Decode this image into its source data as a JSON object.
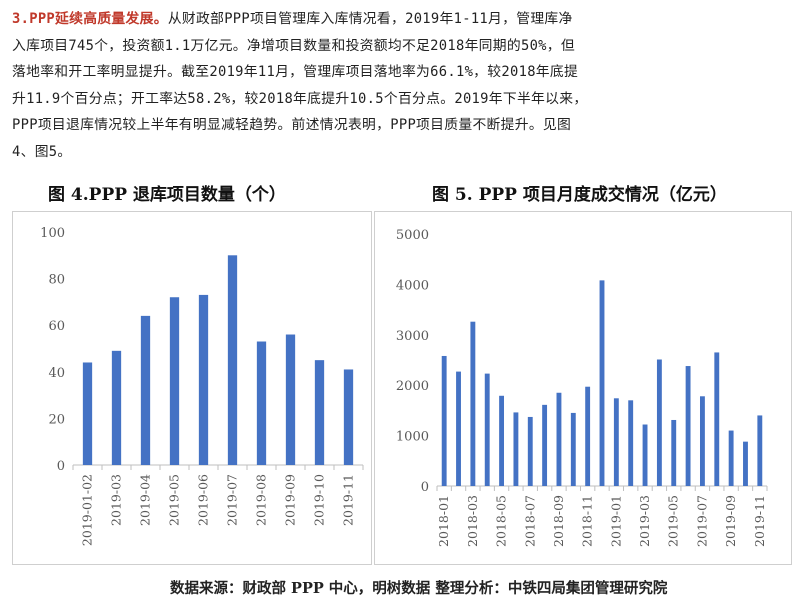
{
  "paragraph": {
    "lead": "3.PPP延续高质量发展。",
    "lines": [
      "从财政部PPP项目管理库入库情况看，2019年1-11月，管理库净",
      "入库项目745个，投资额1.1万亿元。净增项目数量和投资额均不足2018年同期的50%，但",
      "落地率和开工率明显提升。截至2019年11月，管理库项目落地率为66.1%，较2018年底提",
      "升11.9个百分点；开工率达58.2%，较2018年底提升10.5个百分点。2019年下半年以来，",
      "PPP项目退库情况较上半年有明显减轻趋势。前述情况表明，PPP项目质量不断提升。见图",
      "4、图5。"
    ]
  },
  "source_note": "数据来源：财政部 PPP 中心，明树数据    整理分析：中铁四局集团管理研究院",
  "colors": {
    "bar": "#4472c4",
    "axis": "#bfbfbf",
    "tick": "#595959",
    "lead": "#c0392b"
  },
  "chart_data": [
    {
      "type": "bar",
      "title": "图 4.PPP 退库项目数量（个）",
      "categories": [
        "2019-01-02",
        "2019-03",
        "2019-04",
        "2019-05",
        "2019-06",
        "2019-07",
        "2019-08",
        "2019-09",
        "2019-10",
        "2019-11"
      ],
      "values": [
        44,
        49,
        64,
        72,
        73,
        90,
        53,
        56,
        45,
        41
      ],
      "ylim": [
        0,
        100
      ],
      "yticks": [
        0,
        20,
        40,
        60,
        80,
        100
      ],
      "grid": false
    },
    {
      "type": "bar",
      "title": "图 5. PPP 项目月度成交情况（亿元）",
      "categories": [
        "2018-01",
        "2018-02",
        "2018-03",
        "2018-04",
        "2018-05",
        "2018-06",
        "2018-07",
        "2018-08",
        "2018-09",
        "2018-10",
        "2018-11",
        "2018-12",
        "2019-01",
        "2019-02",
        "2019-03",
        "2019-04",
        "2019-05",
        "2019-06",
        "2019-07",
        "2019-08",
        "2019-09",
        "2019-10",
        "2019-11"
      ],
      "xtick_labels": [
        "2018-01",
        "",
        "2018-03",
        "",
        "2018-05",
        "",
        "2018-07",
        "",
        "2018-09",
        "",
        "2018-11",
        "",
        "2019-01",
        "",
        "2019-03",
        "",
        "2019-05",
        "",
        "2019-07",
        "",
        "2019-09",
        "",
        "2019-11"
      ],
      "values": [
        2580,
        2270,
        3260,
        2230,
        1790,
        1460,
        1370,
        1610,
        1850,
        1450,
        1970,
        4080,
        1740,
        1700,
        1220,
        2510,
        1310,
        2380,
        1780,
        2650,
        1100,
        880,
        1400
      ],
      "ylim": [
        0,
        5000
      ],
      "yticks": [
        0,
        1000,
        2000,
        3000,
        4000,
        5000
      ],
      "grid": false
    }
  ]
}
